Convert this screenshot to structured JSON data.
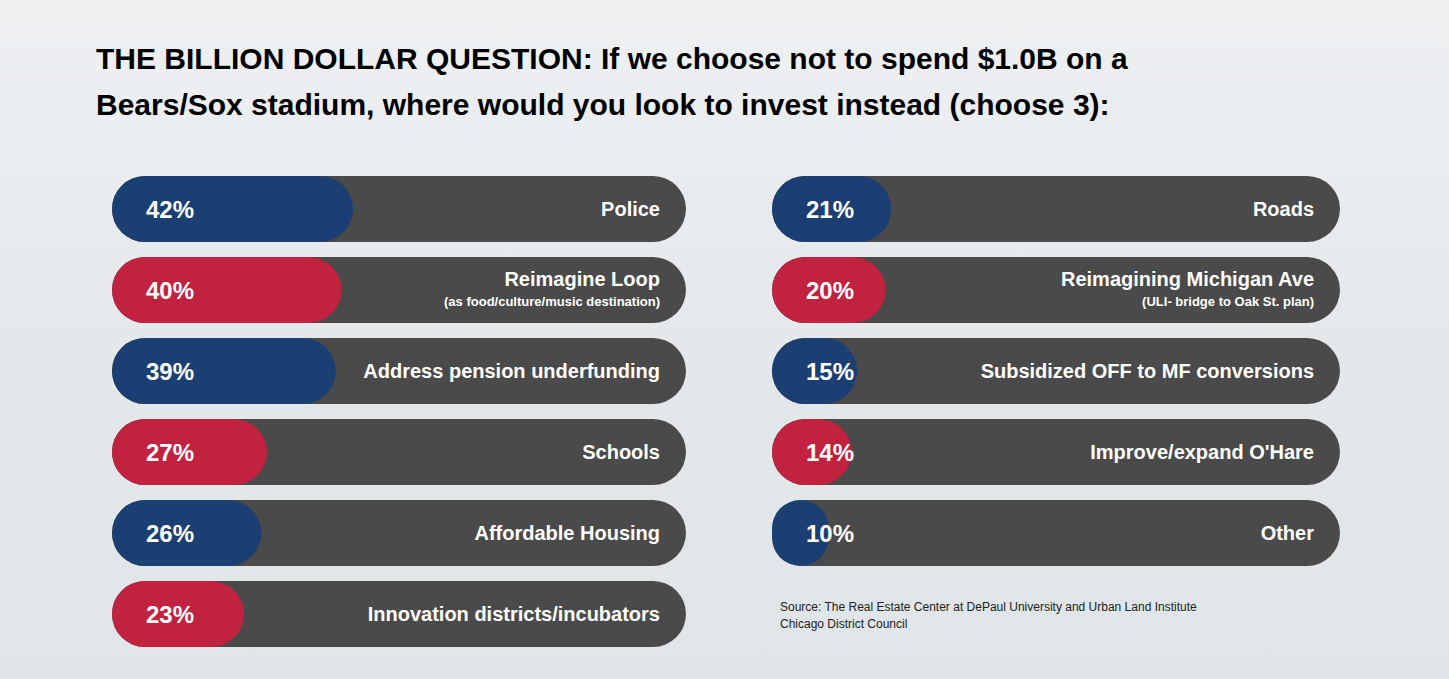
{
  "chart_data": {
    "type": "bar",
    "orientation": "horizontal",
    "title": "THE BILLION DOLLAR QUESTION: If we choose not to spend $1.0B on a Bears/Sox stadium, where would you look to invest instead (choose 3):",
    "categories": [
      "Police",
      "Reimagine Loop\n(as food/culture/music destination)",
      "Address pension underfunding",
      "Schools",
      "Affordable Housing",
      "Innovation districts/incubators",
      "Roads",
      "Reimagining Michigan Ave\n(ULI- bridge to Oak St. plan)",
      "Subsidized OFF to MF conversions",
      "Improve/expand O'Hare",
      "Other"
    ],
    "values": [
      42,
      40,
      39,
      27,
      26,
      23,
      21,
      20,
      15,
      14,
      10
    ],
    "value_labels": [
      "42%",
      "40%",
      "39%",
      "27%",
      "26%",
      "23%",
      "21%",
      "20%",
      "15%",
      "14%",
      "10%"
    ],
    "colors": [
      "#1b3f73",
      "#c0223f",
      "#1b3f73",
      "#c0223f",
      "#1b3f73",
      "#c0223f",
      "#1b3f73",
      "#c0223f",
      "#1b3f73",
      "#c0223f",
      "#1b3f73"
    ],
    "xlim": [
      0,
      100
    ],
    "tick_labels": false,
    "data_labels": true,
    "source": "Source: The Real Estate Center at DePaul University and Urban Land Institute Chicago District Council"
  }
}
